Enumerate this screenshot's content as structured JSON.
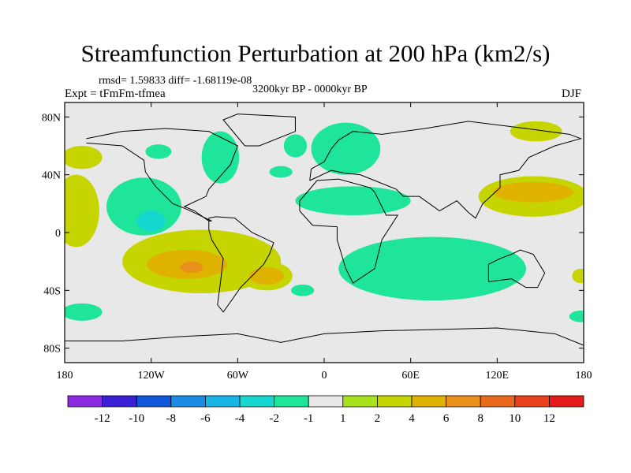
{
  "chart_data": {
    "type": "heatmap",
    "title": "Streamfunction Perturbation at 200 hPa (km2/s)",
    "stats_text": "rmsd= 1.59833 diff= -1.68119e-08",
    "experiment": "Expt = tFmFm-tfmea",
    "period": "3200kyr BP - 0000kyr BP",
    "season": "DJF",
    "xlim": [
      -180,
      180
    ],
    "ylim": [
      -90,
      90
    ],
    "x_ticks": [
      {
        "value": -180,
        "label": "180"
      },
      {
        "value": -120,
        "label": "120W"
      },
      {
        "value": -60,
        "label": "60W"
      },
      {
        "value": 0,
        "label": "0"
      },
      {
        "value": 60,
        "label": "60E"
      },
      {
        "value": 120,
        "label": "120E"
      },
      {
        "value": 180,
        "label": "180"
      }
    ],
    "y_ticks": [
      {
        "value": 80,
        "label": "80N"
      },
      {
        "value": 40,
        "label": "40N"
      },
      {
        "value": 0,
        "label": "0"
      },
      {
        "value": -40,
        "label": "40S"
      },
      {
        "value": -80,
        "label": "80S"
      }
    ],
    "colorbar": {
      "levels": [
        -12,
        -10,
        -8,
        -6,
        -4,
        -2,
        -1,
        1,
        2,
        4,
        6,
        8,
        10,
        12
      ],
      "labels": [
        "-12",
        "-10",
        "-8",
        "-6",
        "-4",
        "-2",
        "-1",
        "1",
        "2",
        "4",
        "6",
        "8",
        "10",
        "12"
      ],
      "colors": [
        "#8a2be2",
        "#3a1fd6",
        "#1058d8",
        "#1a8ce6",
        "#17b4e6",
        "#16d6d0",
        "#1fe59a",
        "#e8e8e8",
        "#a8e21c",
        "#c6d400",
        "#e0b200",
        "#e8901a",
        "#e86a1a",
        "#e8401a",
        "#e51b1b"
      ]
    },
    "anomalies": [
      {
        "name": "n-pacific",
        "lon": -168,
        "lat": 52,
        "rlon": 14,
        "rlat": 8,
        "value": 2
      },
      {
        "name": "alaska-neg",
        "lon": -115,
        "lat": 56,
        "rlon": 9,
        "rlat": 5,
        "value": -1.5
      },
      {
        "name": "n-america-neg",
        "lon": -72,
        "lat": 52,
        "rlon": 13,
        "rlat": 18,
        "value": -1.5
      },
      {
        "name": "c-pacific-neg",
        "lon": -125,
        "lat": 18,
        "rlon": 26,
        "rlat": 20,
        "value": -2
      },
      {
        "name": "c-pacific-core",
        "lon": -120,
        "lat": 8,
        "rlon": 10,
        "rlat": 7,
        "value": -4
      },
      {
        "name": "w-hemi-pos",
        "lon": -85,
        "lat": -20,
        "rlon": 55,
        "rlat": 22,
        "value": 2
      },
      {
        "name": "s-am-pos",
        "lon": -95,
        "lat": -22,
        "rlon": 28,
        "rlat": 10,
        "value": 4
      },
      {
        "name": "s-am-core",
        "lon": -92,
        "lat": -24,
        "rlon": 8,
        "rlat": 4,
        "value": 6
      },
      {
        "name": "e-pacific-pos",
        "lon": -172,
        "lat": 15,
        "rlon": 16,
        "rlat": 25,
        "value": 2
      },
      {
        "name": "s-pacific-neg",
        "lon": -168,
        "lat": -55,
        "rlon": 14,
        "rlat": 6,
        "value": -1.5
      },
      {
        "name": "atlantic-pos",
        "lon": -40,
        "lat": -30,
        "rlon": 18,
        "rlat": 10,
        "value": 2
      },
      {
        "name": "atlantic-core",
        "lon": -40,
        "lat": -30,
        "rlon": 12,
        "rlat": 6,
        "value": 4
      },
      {
        "name": "s-atlantic-neg",
        "lon": -15,
        "lat": -40,
        "rlon": 8,
        "rlat": 4,
        "value": -1.5
      },
      {
        "name": "greenland-neg",
        "lon": -20,
        "lat": 60,
        "rlon": 8,
        "rlat": 8,
        "value": -1.5
      },
      {
        "name": "europe-neg",
        "lon": 15,
        "lat": 58,
        "rlon": 24,
        "rlat": 18,
        "value": -1.5
      },
      {
        "name": "n-atlantic-neg",
        "lon": -30,
        "lat": 42,
        "rlon": 8,
        "rlat": 4,
        "value": -1.5
      },
      {
        "name": "africa-neg",
        "lon": 20,
        "lat": 22,
        "rlon": 40,
        "rlat": 10,
        "value": -1.5
      },
      {
        "name": "africa-core",
        "lon": 10,
        "lat": 22,
        "rlon": 20,
        "rlat": 9,
        "value": -2
      },
      {
        "name": "indian-neg",
        "lon": 75,
        "lat": -25,
        "rlon": 65,
        "rlat": 22,
        "value": -1.5
      },
      {
        "name": "indian-core",
        "lon": 80,
        "lat": -22,
        "rlon": 48,
        "rlat": 16,
        "value": -2
      },
      {
        "name": "w-pacific-pos",
        "lon": 145,
        "lat": 25,
        "rlon": 38,
        "rlat": 14,
        "value": 2
      },
      {
        "name": "w-pacific-core",
        "lon": 145,
        "lat": 28,
        "rlon": 28,
        "rlat": 7,
        "value": 4
      },
      {
        "name": "arctic-pos",
        "lon": 147,
        "lat": 70,
        "rlon": 18,
        "rlat": 7,
        "value": 2
      },
      {
        "name": "s-ocean-neg",
        "lon": 178,
        "lat": -58,
        "rlon": 8,
        "rlat": 4,
        "value": -1.5
      },
      {
        "name": "s-ocean-pos",
        "lon": 178,
        "lat": -30,
        "rlon": 6,
        "rlat": 5,
        "value": 2
      }
    ]
  }
}
